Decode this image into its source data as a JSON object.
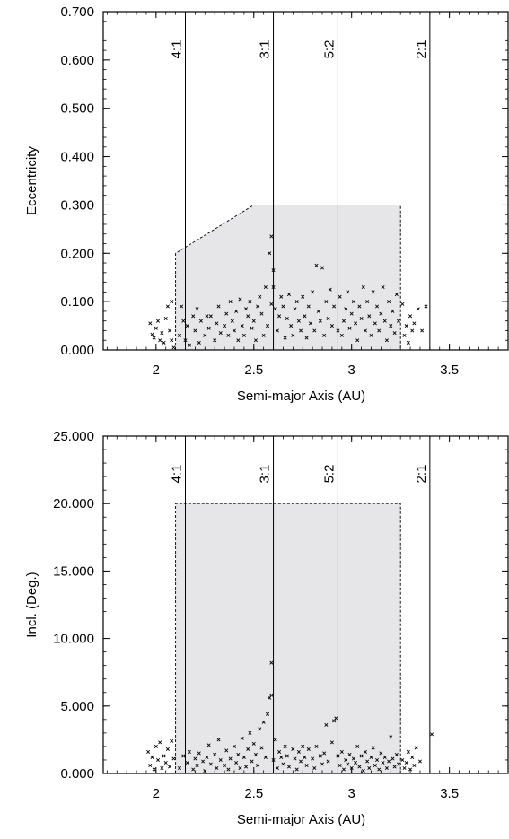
{
  "chart_data": [
    {
      "type": "scatter",
      "xlabel": "Semi-major Axis (AU)",
      "ylabel": "Eccentricity",
      "xlim": [
        1.73,
        3.8
      ],
      "ylim": [
        0,
        0.7
      ],
      "xticks": [
        2,
        2.5,
        3,
        3.5
      ],
      "xtick_labels": [
        "2",
        "2.5",
        "3",
        "3.5"
      ],
      "yticks": [
        0,
        0.1,
        0.2,
        0.3,
        0.4,
        0.5,
        0.6,
        0.7
      ],
      "ytick_labels": [
        "0.000",
        "0.100",
        "0.200",
        "0.300",
        "0.400",
        "0.500",
        "0.600",
        "0.700"
      ],
      "grid": false,
      "resonances": [
        {
          "label": "4:1",
          "a": 2.15
        },
        {
          "label": "3:1",
          "a": 2.6
        },
        {
          "label": "5:2",
          "a": 2.93
        },
        {
          "label": "2:1",
          "a": 3.4
        }
      ],
      "region": [
        [
          2.1,
          0
        ],
        [
          2.1,
          0.2
        ],
        [
          2.5,
          0.3
        ],
        [
          3.25,
          0.3
        ],
        [
          3.25,
          0
        ]
      ],
      "points": [
        [
          1.97,
          0.055
        ],
        [
          1.98,
          0.032
        ],
        [
          1.99,
          0.025
        ],
        [
          2.0,
          0.045
        ],
        [
          2.01,
          0.06
        ],
        [
          2.02,
          0.02
        ],
        [
          2.03,
          0.035
        ],
        [
          2.04,
          0.015
        ],
        [
          2.05,
          0.065
        ],
        [
          2.06,
          0.09
        ],
        [
          2.07,
          0.04
        ],
        [
          2.08,
          0.1
        ],
        [
          2.08,
          0.02
        ],
        [
          2.09,
          0.005
        ],
        [
          2.12,
          0.03
        ],
        [
          2.13,
          0.09
        ],
        [
          2.14,
          0.06
        ],
        [
          2.15,
          0.02
        ],
        [
          2.16,
          0.05
        ],
        [
          2.17,
          0.01
        ],
        [
          2.19,
          0.07
        ],
        [
          2.2,
          0.04
        ],
        [
          2.21,
          0.085
        ],
        [
          2.22,
          0.015
        ],
        [
          2.23,
          0.06
        ],
        [
          2.25,
          0.03
        ],
        [
          2.26,
          0.07
        ],
        [
          2.27,
          0.045
        ],
        [
          2.28,
          0.07
        ],
        [
          2.3,
          0.02
        ],
        [
          2.31,
          0.055
        ],
        [
          2.32,
          0.09
        ],
        [
          2.33,
          0.035
        ],
        [
          2.35,
          0.05
        ],
        [
          2.36,
          0.075
        ],
        [
          2.37,
          0.03
        ],
        [
          2.38,
          0.1
        ],
        [
          2.39,
          0.06
        ],
        [
          2.4,
          0.04
        ],
        [
          2.41,
          0.08
        ],
        [
          2.42,
          0.02
        ],
        [
          2.43,
          0.105
        ],
        [
          2.44,
          0.05
        ],
        [
          2.45,
          0.03
        ],
        [
          2.46,
          0.085
        ],
        [
          2.47,
          0.07
        ],
        [
          2.48,
          0.1
        ],
        [
          2.49,
          0.045
        ],
        [
          2.5,
          0.06
        ],
        [
          2.51,
          0.02
        ],
        [
          2.52,
          0.09
        ],
        [
          2.53,
          0.11
        ],
        [
          2.54,
          0.075
        ],
        [
          2.55,
          0.03
        ],
        [
          2.56,
          0.13
        ],
        [
          2.57,
          0.05
        ],
        [
          2.58,
          0.2
        ],
        [
          2.59,
          0.235
        ],
        [
          2.59,
          0.095
        ],
        [
          2.6,
          0.165
        ],
        [
          2.6,
          0.13
        ],
        [
          2.61,
          0.085
        ],
        [
          2.62,
          0.04
        ],
        [
          2.63,
          0.07
        ],
        [
          2.64,
          0.11
        ],
        [
          2.65,
          0.09
        ],
        [
          2.66,
          0.025
        ],
        [
          2.67,
          0.065
        ],
        [
          2.68,
          0.115
        ],
        [
          2.69,
          0.05
        ],
        [
          2.7,
          0.03
        ],
        [
          2.71,
          0.085
        ],
        [
          2.72,
          0.1
        ],
        [
          2.73,
          0.06
        ],
        [
          2.74,
          0.04
        ],
        [
          2.75,
          0.11
        ],
        [
          2.76,
          0.07
        ],
        [
          2.77,
          0.025
        ],
        [
          2.78,
          0.09
        ],
        [
          2.79,
          0.055
        ],
        [
          2.8,
          0.12
        ],
        [
          2.81,
          0.04
        ],
        [
          2.82,
          0.175
        ],
        [
          2.83,
          0.08
        ],
        [
          2.84,
          0.06
        ],
        [
          2.85,
          0.17
        ],
        [
          2.86,
          0.03
        ],
        [
          2.87,
          0.1
        ],
        [
          2.88,
          0.065
        ],
        [
          2.89,
          0.125
        ],
        [
          2.9,
          0.05
        ],
        [
          2.91,
          0.09
        ],
        [
          2.93,
          0.04
        ],
        [
          2.94,
          0.11
        ],
        [
          2.95,
          0.03
        ],
        [
          2.96,
          0.06
        ],
        [
          2.97,
          0.085
        ],
        [
          2.98,
          0.12
        ],
        [
          2.99,
          0.045
        ],
        [
          3.0,
          0.075
        ],
        [
          3.01,
          0.1
        ],
        [
          3.02,
          0.055
        ],
        [
          3.03,
          0.02
        ],
        [
          3.04,
          0.09
        ],
        [
          3.05,
          0.065
        ],
        [
          3.06,
          0.13
        ],
        [
          3.07,
          0.04
        ],
        [
          3.08,
          0.1
        ],
        [
          3.09,
          0.07
        ],
        [
          3.1,
          0.03
        ],
        [
          3.11,
          0.12
        ],
        [
          3.12,
          0.055
        ],
        [
          3.13,
          0.09
        ],
        [
          3.14,
          0.04
        ],
        [
          3.15,
          0.075
        ],
        [
          3.16,
          0.13
        ],
        [
          3.17,
          0.06
        ],
        [
          3.18,
          0.02
        ],
        [
          3.19,
          0.1
        ],
        [
          3.2,
          0.05
        ],
        [
          3.21,
          0.08
        ],
        [
          3.22,
          0.035
        ],
        [
          3.23,
          0.115
        ],
        [
          3.24,
          0.06
        ],
        [
          3.26,
          0.095
        ],
        [
          3.27,
          0.03
        ],
        [
          3.28,
          0.05
        ],
        [
          3.29,
          0.015
        ],
        [
          3.3,
          0.07
        ],
        [
          3.31,
          0.04
        ],
        [
          3.32,
          0.055
        ],
        [
          3.34,
          0.085
        ],
        [
          3.36,
          0.04
        ],
        [
          3.38,
          0.09
        ]
      ]
    },
    {
      "type": "scatter",
      "xlabel": "Semi-major Axis (AU)",
      "ylabel": "Incl. (Deg.)",
      "xlim": [
        1.73,
        3.8
      ],
      "ylim": [
        0,
        25
      ],
      "xticks": [
        2,
        2.5,
        3,
        3.5
      ],
      "xtick_labels": [
        "2",
        "2.5",
        "3",
        "3.5"
      ],
      "yticks": [
        0,
        5,
        10,
        15,
        20,
        25
      ],
      "ytick_labels": [
        "0.000",
        "5.000",
        "10.000",
        "15.000",
        "20.000",
        "25.000"
      ],
      "grid": false,
      "resonances": [
        {
          "label": "4:1",
          "a": 2.15
        },
        {
          "label": "3:1",
          "a": 2.6
        },
        {
          "label": "5:2",
          "a": 2.93
        },
        {
          "label": "2:1",
          "a": 3.4
        }
      ],
      "region": [
        [
          2.1,
          0
        ],
        [
          2.1,
          20
        ],
        [
          3.25,
          20
        ],
        [
          3.25,
          0
        ]
      ],
      "points": [
        [
          1.96,
          1.6
        ],
        [
          1.97,
          0.6
        ],
        [
          1.98,
          1.2
        ],
        [
          1.99,
          0.3
        ],
        [
          2.0,
          2.0
        ],
        [
          2.01,
          1.0
        ],
        [
          2.02,
          2.3
        ],
        [
          2.03,
          0.4
        ],
        [
          2.04,
          1.3
        ],
        [
          2.05,
          0.8
        ],
        [
          2.06,
          1.8
        ],
        [
          2.07,
          0.5
        ],
        [
          2.08,
          2.4
        ],
        [
          2.09,
          1.1
        ],
        [
          2.12,
          0.4
        ],
        [
          2.14,
          1.3
        ],
        [
          2.16,
          0.8
        ],
        [
          2.17,
          1.6
        ],
        [
          2.19,
          0.3
        ],
        [
          2.2,
          1.1
        ],
        [
          2.21,
          0.6
        ],
        [
          2.22,
          1.5
        ],
        [
          2.24,
          0.9
        ],
        [
          2.25,
          0.2
        ],
        [
          2.26,
          1.2
        ],
        [
          2.27,
          2.1
        ],
        [
          2.28,
          0.7
        ],
        [
          2.3,
          1.4
        ],
        [
          2.31,
          0.4
        ],
        [
          2.32,
          2.5
        ],
        [
          2.33,
          1.0
        ],
        [
          2.35,
          0.6
        ],
        [
          2.36,
          1.7
        ],
        [
          2.37,
          0.3
        ],
        [
          2.38,
          1.1
        ],
        [
          2.4,
          2.0
        ],
        [
          2.41,
          0.8
        ],
        [
          2.42,
          1.4
        ],
        [
          2.43,
          0.4
        ],
        [
          2.44,
          2.6
        ],
        [
          2.45,
          1.2
        ],
        [
          2.46,
          0.5
        ],
        [
          2.47,
          1.8
        ],
        [
          2.48,
          3.0
        ],
        [
          2.49,
          0.9
        ],
        [
          2.5,
          2.2
        ],
        [
          2.51,
          1.4
        ],
        [
          2.52,
          0.6
        ],
        [
          2.53,
          3.3
        ],
        [
          2.54,
          1.9
        ],
        [
          2.55,
          3.8
        ],
        [
          2.56,
          1.2
        ],
        [
          2.57,
          4.4
        ],
        [
          2.58,
          5.6
        ],
        [
          2.59,
          5.8
        ],
        [
          2.59,
          8.2
        ],
        [
          2.6,
          1.0
        ],
        [
          2.61,
          2.5
        ],
        [
          2.62,
          0.4
        ],
        [
          2.63,
          1.6
        ],
        [
          2.64,
          1.2
        ],
        [
          2.65,
          0.7
        ],
        [
          2.66,
          2.0
        ],
        [
          2.67,
          1.3
        ],
        [
          2.68,
          0.5
        ],
        [
          2.7,
          1.8
        ],
        [
          2.71,
          1.1
        ],
        [
          2.72,
          0.3
        ],
        [
          2.73,
          1.6
        ],
        [
          2.74,
          0.9
        ],
        [
          2.75,
          2.0
        ],
        [
          2.76,
          1.2
        ],
        [
          2.77,
          0.6
        ],
        [
          2.78,
          1.8
        ],
        [
          2.8,
          1.1
        ],
        [
          2.81,
          0.4
        ],
        [
          2.82,
          2.0
        ],
        [
          2.84,
          1.3
        ],
        [
          2.85,
          0.7
        ],
        [
          2.86,
          1.5
        ],
        [
          2.87,
          3.6
        ],
        [
          2.88,
          0.9
        ],
        [
          2.9,
          2.3
        ],
        [
          2.91,
          3.9
        ],
        [
          2.92,
          4.1
        ],
        [
          2.93,
          1.3
        ],
        [
          2.94,
          0.6
        ],
        [
          2.95,
          1.6
        ],
        [
          2.96,
          0.3
        ],
        [
          2.97,
          1.0
        ],
        [
          2.98,
          0.7
        ],
        [
          2.99,
          1.4
        ],
        [
          3.0,
          0.4
        ],
        [
          3.01,
          1.1
        ],
        [
          3.02,
          0.8
        ],
        [
          3.03,
          2.0
        ],
        [
          3.04,
          0.5
        ],
        [
          3.05,
          1.3
        ],
        [
          3.06,
          0.2
        ],
        [
          3.07,
          1.6
        ],
        [
          3.08,
          0.9
        ],
        [
          3.09,
          0.4
        ],
        [
          3.1,
          1.2
        ],
        [
          3.11,
          1.9
        ],
        [
          3.12,
          0.6
        ],
        [
          3.13,
          1.0
        ],
        [
          3.14,
          0.3
        ],
        [
          3.15,
          1.5
        ],
        [
          3.16,
          0.8
        ],
        [
          3.17,
          1.2
        ],
        [
          3.18,
          0.4
        ],
        [
          3.19,
          0.9
        ],
        [
          3.2,
          2.7
        ],
        [
          3.21,
          1.1
        ],
        [
          3.22,
          0.5
        ],
        [
          3.23,
          1.4
        ],
        [
          3.24,
          0.7
        ],
        [
          3.26,
          1.0
        ],
        [
          3.27,
          0.4
        ],
        [
          3.28,
          0.8
        ],
        [
          3.29,
          1.6
        ],
        [
          3.3,
          0.3
        ],
        [
          3.31,
          1.2
        ],
        [
          3.32,
          0.6
        ],
        [
          3.33,
          1.9
        ],
        [
          3.35,
          0.9
        ],
        [
          3.41,
          2.9
        ]
      ]
    }
  ]
}
